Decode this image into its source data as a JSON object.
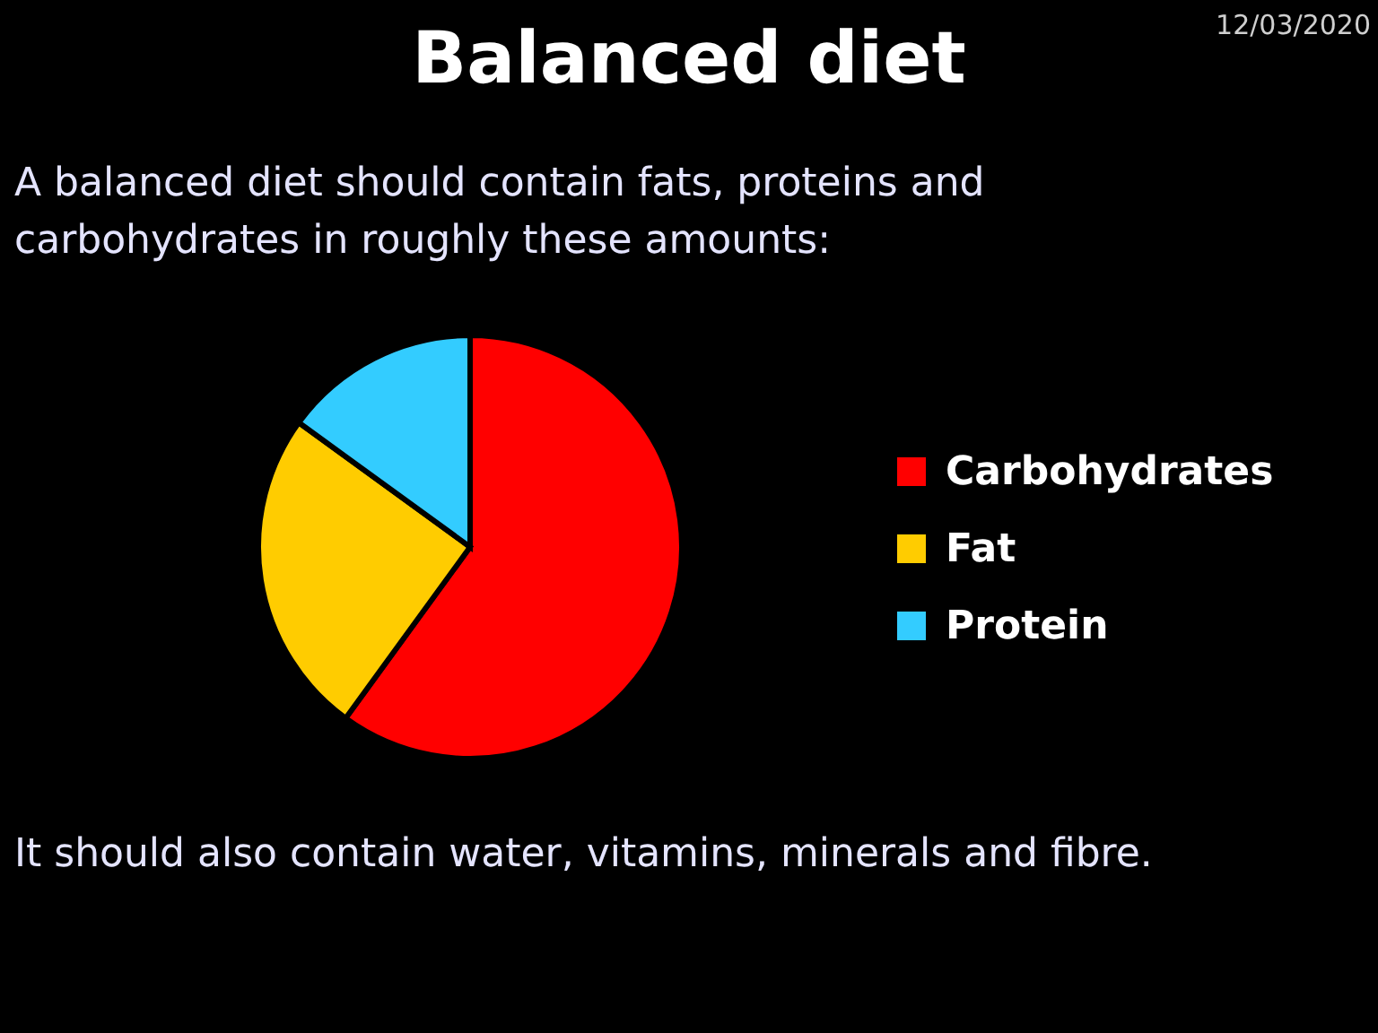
{
  "chart_data": {
    "type": "pie",
    "title": "Balanced diet",
    "subtitle": "A balanced diet should contain fats, proteins and carbohydrates in roughly these amounts:",
    "categories": [
      "Carbohydrates",
      "Fat",
      "Protein"
    ],
    "values": [
      60,
      25,
      15
    ],
    "colors": [
      "#ff0000",
      "#ffcc00",
      "#33ccff"
    ],
    "legend": "right",
    "annotations": [
      "12/03/2020",
      "It should also contain water, vitamins, minerals and fibre."
    ]
  }
}
